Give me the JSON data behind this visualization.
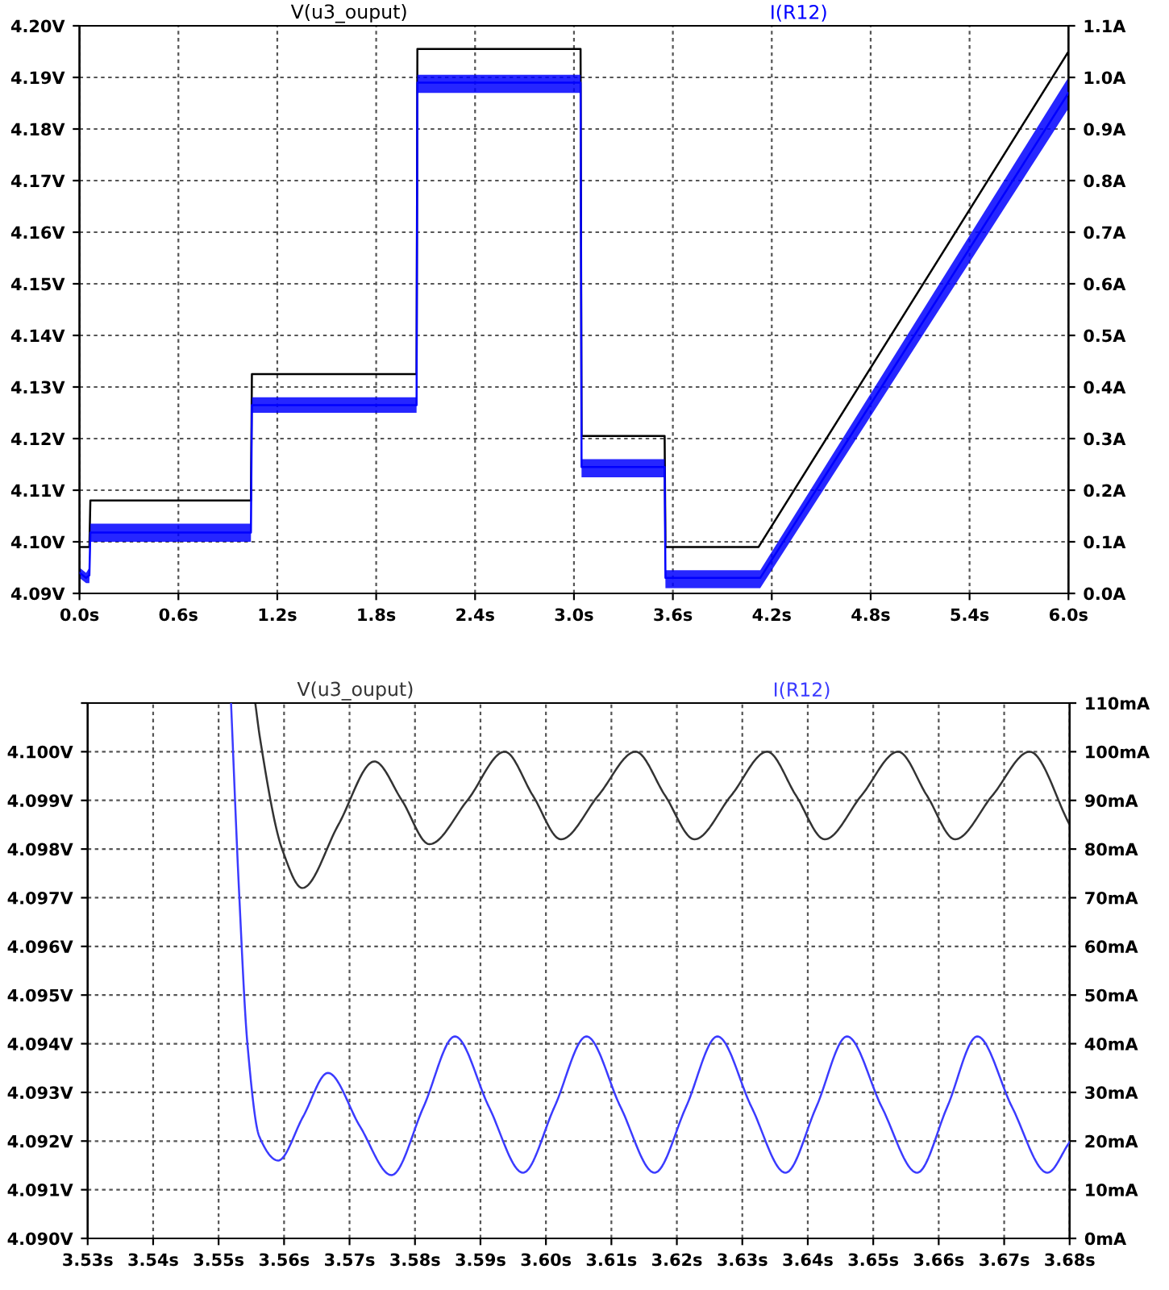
{
  "chart_data": [
    {
      "type": "line",
      "xlim": [
        0,
        6
      ],
      "xticks": [
        {
          "value": 0,
          "label": "0.0s"
        },
        {
          "value": 0.6,
          "label": "0.6s"
        },
        {
          "value": 1.2,
          "label": "1.2s"
        },
        {
          "value": 1.8,
          "label": "1.8s"
        },
        {
          "value": 2.4,
          "label": "2.4s"
        },
        {
          "value": 3.0,
          "label": "3.0s"
        },
        {
          "value": 3.6,
          "label": "3.6s"
        },
        {
          "value": 4.2,
          "label": "4.2s"
        },
        {
          "value": 4.8,
          "label": "4.8s"
        },
        {
          "value": 5.4,
          "label": "5.4s"
        },
        {
          "value": 6.0,
          "label": "6.0s"
        }
      ],
      "ylim": [
        4.09,
        4.2
      ],
      "yticks": [
        {
          "value": 4.09,
          "label": "4.09V"
        },
        {
          "value": 4.1,
          "label": "4.10V"
        },
        {
          "value": 4.11,
          "label": "4.11V"
        },
        {
          "value": 4.12,
          "label": "4.12V"
        },
        {
          "value": 4.13,
          "label": "4.13V"
        },
        {
          "value": 4.14,
          "label": "4.14V"
        },
        {
          "value": 4.15,
          "label": "4.15V"
        },
        {
          "value": 4.16,
          "label": "4.16V"
        },
        {
          "value": 4.17,
          "label": "4.17V"
        },
        {
          "value": 4.18,
          "label": "4.18V"
        },
        {
          "value": 4.19,
          "label": "4.19V"
        },
        {
          "value": 4.2,
          "label": "4.20V"
        }
      ],
      "y2lim": [
        0,
        1.1
      ],
      "y2ticks": [
        {
          "value": 0,
          "label": "0.0A"
        },
        {
          "value": 0.1,
          "label": "0.1A"
        },
        {
          "value": 0.2,
          "label": "0.2A"
        },
        {
          "value": 0.3,
          "label": "0.3A"
        },
        {
          "value": 0.4,
          "label": "0.4A"
        },
        {
          "value": 0.5,
          "label": "0.5A"
        },
        {
          "value": 0.6,
          "label": "0.6A"
        },
        {
          "value": 0.7,
          "label": "0.7A"
        },
        {
          "value": 0.8,
          "label": "0.8A"
        },
        {
          "value": 0.9,
          "label": "0.9A"
        },
        {
          "value": 1.0,
          "label": "1.0A"
        },
        {
          "value": 1.1,
          "label": "1.1A"
        }
      ],
      "grid": true,
      "series": [
        {
          "name": "V(u3_ouput)",
          "color": "#000000",
          "axis": "y",
          "x": [
            0,
            0.06,
            0.066,
            1.04,
            1.046,
            2.045,
            2.05,
            3.04,
            3.046,
            3.55,
            3.555,
            4.12,
            6.0
          ],
          "values": [
            4.099,
            4.099,
            4.108,
            4.108,
            4.1325,
            4.1325,
            4.1955,
            4.1955,
            4.1205,
            4.1205,
            4.099,
            4.099,
            4.195
          ]
        },
        {
          "name": "I(R12)",
          "color": "#0000ff",
          "axis": "y2",
          "x": [
            0,
            0.04,
            0.06,
            0.066,
            1.04,
            1.046,
            2.045,
            2.05,
            3.04,
            3.046,
            3.55,
            3.555,
            4.13,
            6.0
          ],
          "values": [
            0.04,
            0.03,
            0.035,
            0.118,
            0.118,
            0.365,
            0.365,
            0.99,
            0.99,
            0.245,
            0.245,
            0.03,
            0.03,
            0.97
          ],
          "lower": [
            0.03,
            0.02,
            0.02,
            0.1,
            0.1,
            0.35,
            0.35,
            0.97,
            0.97,
            0.225,
            0.225,
            0.01,
            0.01,
            0.94
          ],
          "upper": [
            0.05,
            0.04,
            0.05,
            0.135,
            0.135,
            0.38,
            0.38,
            1.005,
            1.005,
            0.26,
            0.26,
            0.045,
            0.045,
            1.0
          ]
        }
      ]
    },
    {
      "type": "line",
      "xlim": [
        3.53,
        3.68
      ],
      "xticks": [
        {
          "value": 3.53,
          "label": "3.53s"
        },
        {
          "value": 3.54,
          "label": "3.54s"
        },
        {
          "value": 3.55,
          "label": "3.55s"
        },
        {
          "value": 3.56,
          "label": "3.56s"
        },
        {
          "value": 3.57,
          "label": "3.57s"
        },
        {
          "value": 3.58,
          "label": "3.58s"
        },
        {
          "value": 3.59,
          "label": "3.59s"
        },
        {
          "value": 3.6,
          "label": "3.60s"
        },
        {
          "value": 3.61,
          "label": "3.61s"
        },
        {
          "value": 3.62,
          "label": "3.62s"
        },
        {
          "value": 3.63,
          "label": "3.63s"
        },
        {
          "value": 3.64,
          "label": "3.64s"
        },
        {
          "value": 3.65,
          "label": "3.65s"
        },
        {
          "value": 3.66,
          "label": "3.66s"
        },
        {
          "value": 3.67,
          "label": "3.67s"
        },
        {
          "value": 3.68,
          "label": "3.68s"
        }
      ],
      "ylim": [
        4.09,
        4.101
      ],
      "yticks": [
        {
          "value": 4.09,
          "label": "4.090V"
        },
        {
          "value": 4.091,
          "label": "4.091V"
        },
        {
          "value": 4.092,
          "label": "4.092V"
        },
        {
          "value": 4.093,
          "label": "4.093V"
        },
        {
          "value": 4.094,
          "label": "4.094V"
        },
        {
          "value": 4.095,
          "label": "4.095V"
        },
        {
          "value": 4.096,
          "label": "4.096V"
        },
        {
          "value": 4.097,
          "label": "4.097V"
        },
        {
          "value": 4.098,
          "label": "4.098V"
        },
        {
          "value": 4.099,
          "label": "4.099V"
        },
        {
          "value": 4.1,
          "label": "4.100V"
        },
        {
          "value": 4.101,
          "label": null
        }
      ],
      "y2lim": [
        0,
        110
      ],
      "y2ticks": [
        {
          "value": 0,
          "label": "0mA"
        },
        {
          "value": 10,
          "label": "10mA"
        },
        {
          "value": 20,
          "label": "20mA"
        },
        {
          "value": 30,
          "label": "30mA"
        },
        {
          "value": 40,
          "label": "40mA"
        },
        {
          "value": 50,
          "label": "50mA"
        },
        {
          "value": 60,
          "label": "60mA"
        },
        {
          "value": 70,
          "label": "70mA"
        },
        {
          "value": 80,
          "label": "80mA"
        },
        {
          "value": 90,
          "label": "90mA"
        },
        {
          "value": 100,
          "label": "100mA"
        },
        {
          "value": 110,
          "label": "110mA"
        }
      ],
      "grid": true,
      "series": [
        {
          "name": "V(u3_ouput)",
          "color": "#333333",
          "axis": "y",
          "x": [
            3.5556,
            3.5563,
            3.5597,
            3.5628,
            3.5683,
            3.5738,
            3.578,
            3.5822,
            3.588,
            3.5937,
            3.598,
            3.6023,
            3.608,
            3.6137,
            3.6182,
            3.6227,
            3.6283,
            3.6338,
            3.6382,
            3.6426,
            3.6482,
            3.6538,
            3.6582,
            3.6625,
            3.6682,
            3.6739,
            3.68
          ],
          "values": [
            4.101,
            4.1003,
            4.098,
            4.0972,
            4.0985,
            4.0998,
            4.099,
            4.0981,
            4.099,
            4.1,
            4.0991,
            4.0982,
            4.0991,
            4.1,
            4.0991,
            4.0982,
            4.0991,
            4.1,
            4.0991,
            4.0982,
            4.0991,
            4.1,
            4.0991,
            4.0982,
            4.0991,
            4.1,
            4.0985
          ]
        },
        {
          "name": "I(R12)",
          "color": "#3b3bff",
          "axis": "y2",
          "x": [
            3.5519,
            3.5531,
            3.5544,
            3.5562,
            3.5591,
            3.5629,
            3.5667,
            3.5716,
            3.5764,
            3.5813,
            3.5861,
            3.5913,
            3.5965,
            3.6013,
            3.6062,
            3.6114,
            3.6166,
            3.6214,
            3.6262,
            3.6314,
            3.6366,
            3.6413,
            3.646,
            3.6513,
            3.6567,
            3.6613,
            3.6659,
            3.6712,
            3.6766,
            3.68
          ],
          "values": [
            110,
            72,
            40,
            21,
            16,
            25,
            34,
            23,
            13,
            27,
            41.5,
            27,
            13.5,
            27,
            41.5,
            27,
            13.5,
            27,
            41.5,
            27,
            13.5,
            27,
            41.5,
            27,
            13.5,
            27,
            41.5,
            27,
            13.5,
            19.8
          ]
        }
      ]
    }
  ]
}
